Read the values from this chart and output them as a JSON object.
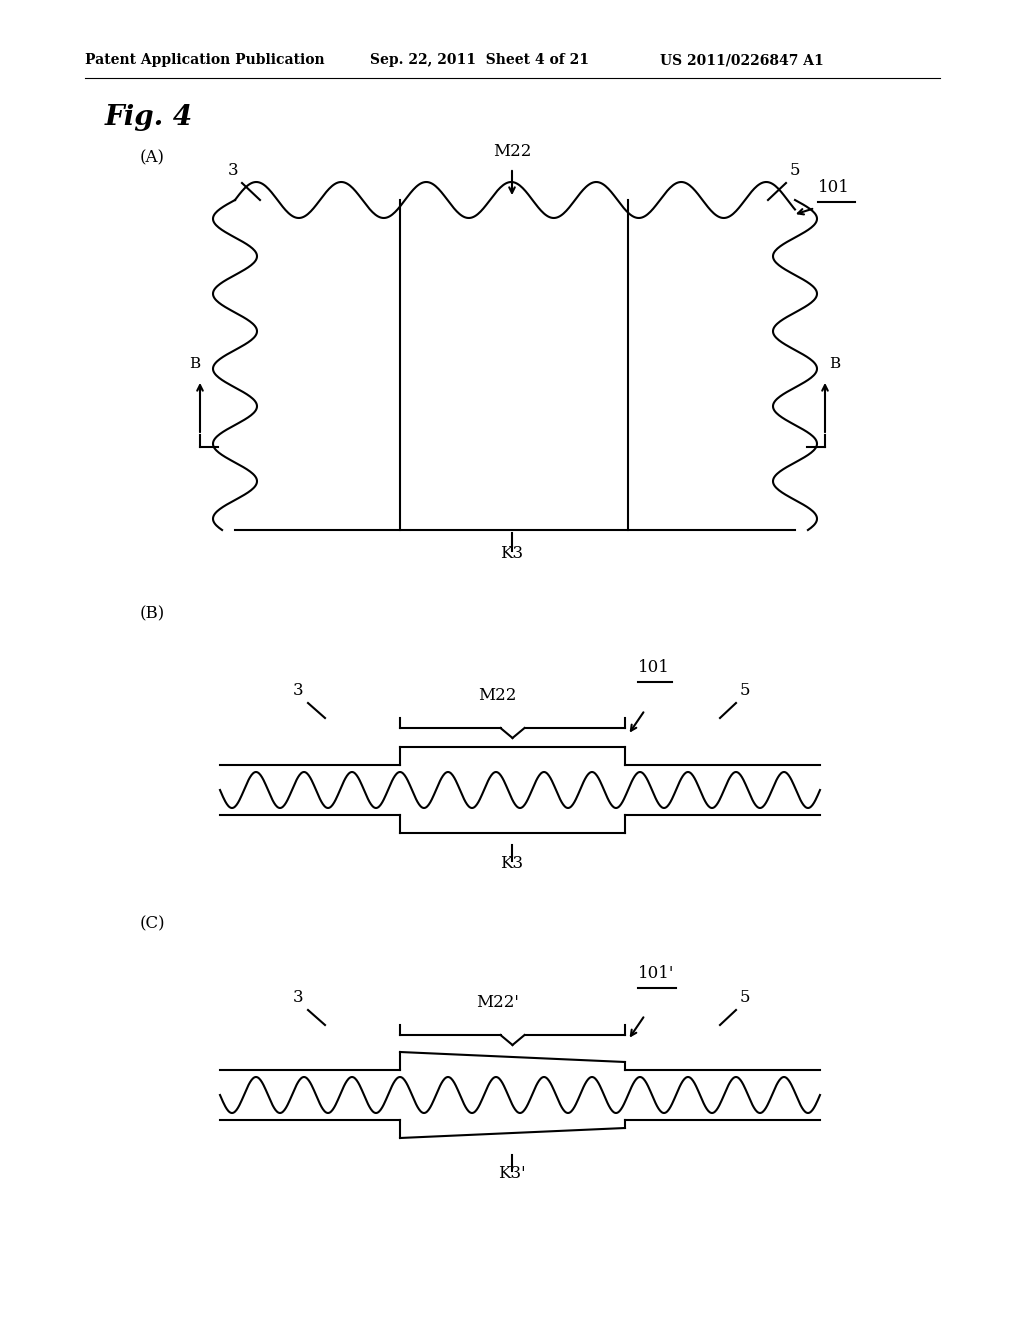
{
  "bg_color": "#ffffff",
  "header_text": "Patent Application Publication",
  "header_date": "Sep. 22, 2011  Sheet 4 of 21",
  "header_patent": "US 2011/0226847 A1",
  "fig_title": "Fig. 4",
  "panel_A_label": "(A)",
  "panel_B_label": "(B)",
  "panel_C_label": "(C)",
  "label_M22": "M22",
  "label_M22p": "M22'",
  "label_K3": "K3",
  "label_K3p": "K3'",
  "label_101": "101",
  "label_101p": "101'",
  "label_3": "3",
  "label_5": "5",
  "label_B": "B"
}
